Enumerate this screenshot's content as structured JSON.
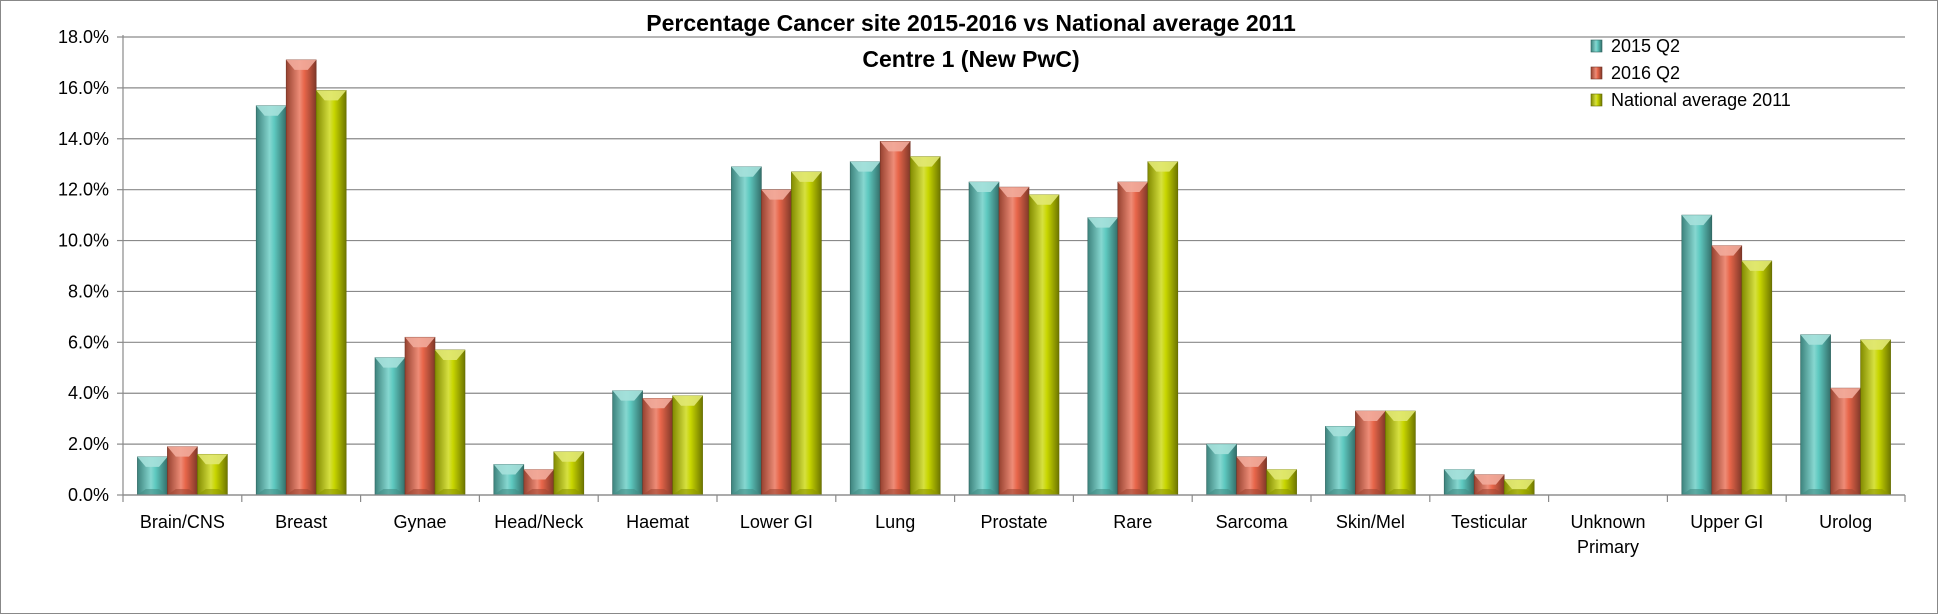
{
  "chart_data": {
    "type": "bar",
    "title": "Percentage Cancer site 2015-2016 vs National average 2011",
    "subtitle": "Centre 1 (New PwC)",
    "xlabel": "",
    "ylabel": "",
    "categories": [
      "Brain/CNS",
      "Breast",
      "Gynae",
      "Head/Neck",
      "Haemat",
      "Lower GI",
      "Lung",
      "Prostate",
      "Rare",
      "Sarcoma",
      "Skin/Mel",
      "Testicular",
      "Unknown Primary",
      "Upper GI",
      "Urolog"
    ],
    "category_lines": [
      [
        "Brain/CNS"
      ],
      [
        "Breast"
      ],
      [
        "Gynae"
      ],
      [
        "Head/Neck"
      ],
      [
        "Haemat"
      ],
      [
        "Lower GI"
      ],
      [
        "Lung"
      ],
      [
        "Prostate"
      ],
      [
        "Rare"
      ],
      [
        "Sarcoma"
      ],
      [
        "Skin/Mel"
      ],
      [
        "Testicular"
      ],
      [
        "Unknown",
        "Primary"
      ],
      [
        "Upper GI"
      ],
      [
        "Urolog"
      ]
    ],
    "series": [
      {
        "name": "2015 Q2",
        "color": "#5ec9c0",
        "values": [
          1.5,
          15.3,
          5.4,
          1.2,
          4.1,
          12.9,
          13.1,
          12.3,
          10.9,
          2.0,
          2.7,
          1.0,
          0.0,
          11.0,
          6.3
        ]
      },
      {
        "name": "2016 Q2",
        "color": "#e8664a",
        "values": [
          1.9,
          17.1,
          6.2,
          1.0,
          3.8,
          12.0,
          13.9,
          12.1,
          12.3,
          1.5,
          3.3,
          0.8,
          0.0,
          9.8,
          4.2
        ]
      },
      {
        "name": "National average 2011",
        "color": "#c8d600",
        "values": [
          1.6,
          15.9,
          5.7,
          1.7,
          3.9,
          12.7,
          13.3,
          11.8,
          13.1,
          1.0,
          3.3,
          0.6,
          0.0,
          9.2,
          6.1
        ]
      }
    ],
    "ylim": [
      0,
      18
    ],
    "yticks": [
      0,
      2,
      4,
      6,
      8,
      10,
      12,
      14,
      16,
      18
    ],
    "ytick_labels": [
      "0.0%",
      "2.0%",
      "4.0%",
      "6.0%",
      "8.0%",
      "10.0%",
      "12.0%",
      "14.0%",
      "16.0%",
      "18.0%"
    ],
    "grid": true,
    "legend": "top-right"
  }
}
